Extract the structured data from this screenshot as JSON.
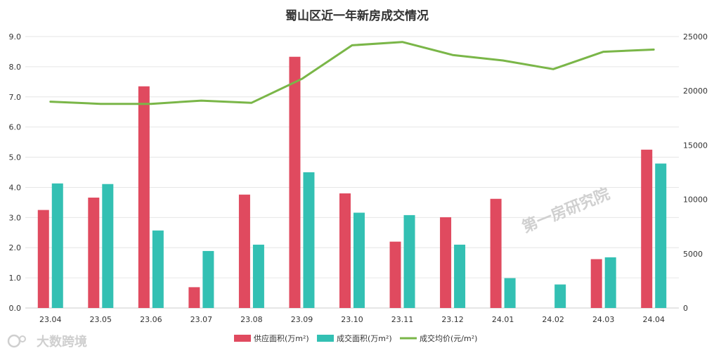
{
  "chart_data": {
    "type": "bar",
    "title": "蜀山区近一年新房成交情况",
    "categories": [
      "23.04",
      "23.05",
      "23.06",
      "23.07",
      "23.08",
      "23.09",
      "23.10",
      "23.11",
      "23.12",
      "24.01",
      "24.02",
      "24.03",
      "24.04"
    ],
    "series": [
      {
        "name": "供应面积(万m²)",
        "type": "bar",
        "axis": "left",
        "color": "#e04a5f",
        "values": [
          3.25,
          3.66,
          7.35,
          0.69,
          3.76,
          8.33,
          3.8,
          2.2,
          3.01,
          3.62,
          0,
          1.62,
          5.25
        ]
      },
      {
        "name": "成交面积(万m²)",
        "type": "bar",
        "axis": "left",
        "color": "#33c0b3",
        "values": [
          4.13,
          4.11,
          2.57,
          1.89,
          2.1,
          4.5,
          3.16,
          3.08,
          2.1,
          0.99,
          0.78,
          1.68,
          4.79
        ]
      },
      {
        "name": "成交均价(元/m²)",
        "type": "line",
        "axis": "right",
        "color": "#7ab648",
        "values": [
          19000,
          18800,
          18800,
          19100,
          18900,
          21100,
          24200,
          24500,
          23300,
          22800,
          22000,
          23600,
          23800
        ]
      }
    ],
    "y_left": {
      "min": 0,
      "max": 9,
      "ticks": [
        "0.0",
        "1.0",
        "2.0",
        "3.0",
        "4.0",
        "5.0",
        "6.0",
        "7.0",
        "8.0",
        "9.0"
      ]
    },
    "y_right": {
      "min": 0,
      "max": 25000,
      "ticks": [
        "0",
        "5000",
        "10000",
        "15000",
        "20000",
        "25000"
      ]
    },
    "grid": true,
    "legend_position": "bottom-center"
  },
  "watermarks": {
    "center": "第一房研究院",
    "corner": "大数跨境"
  }
}
